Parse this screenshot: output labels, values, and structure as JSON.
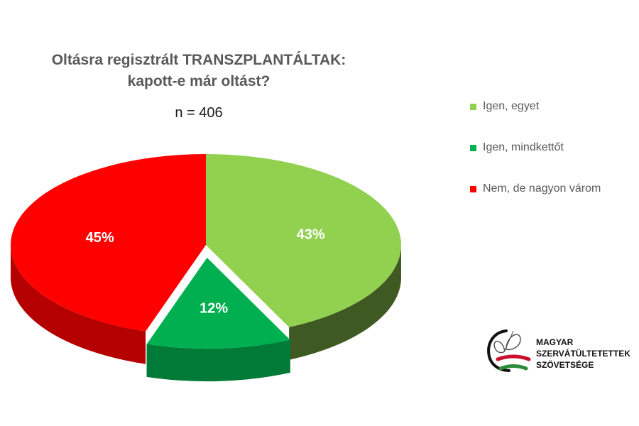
{
  "chart_data": {
    "type": "pie",
    "title": [
      "Oltásra regisztrált TRANSZPLANTÁLTAK:",
      "kapott-e már oltást?"
    ],
    "subtitle": "n = 406",
    "categories": [
      "Igen, egyet",
      "Igen, mindkettőt",
      "Nem, de nagyon várom"
    ],
    "values": [
      43,
      12,
      45
    ],
    "labels": [
      "43%",
      "12%",
      "45%"
    ],
    "colors": [
      "#92d050",
      "#00b050",
      "#ff0000"
    ],
    "side_colors": [
      "#3e5a22",
      "#007a37",
      "#b50000"
    ],
    "legend_position": "right",
    "exploded": "Igen, mindkettőt",
    "style": "3d"
  },
  "organization": {
    "name_lines": [
      "MAGYAR",
      "SZERVÁTÜLTETETTEK",
      "SZÖVETSÉGE"
    ]
  }
}
